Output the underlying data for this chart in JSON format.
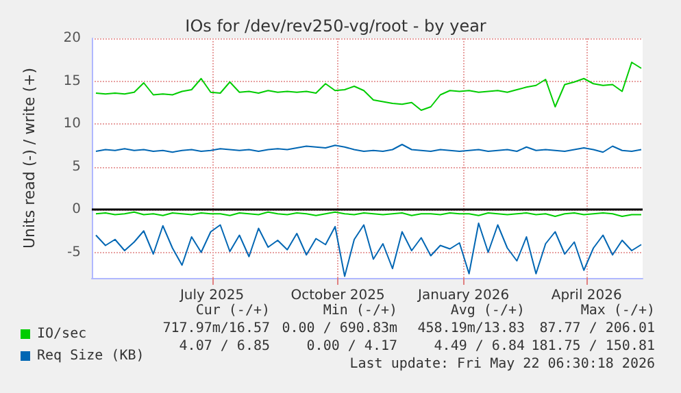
{
  "chart_data": {
    "type": "line",
    "title": "IOs for /dev/rev250-vg/root - by year",
    "ylabel": "Units read (-) / write (+)",
    "x": [
      "2025-04-07",
      "2025-04-14",
      "2025-04-21",
      "2025-04-28",
      "2025-05-05",
      "2025-05-12",
      "2025-05-19",
      "2025-05-26",
      "2025-06-02",
      "2025-06-09",
      "2025-06-16",
      "2025-06-23",
      "2025-06-30",
      "2025-07-07",
      "2025-07-14",
      "2025-07-21",
      "2025-07-28",
      "2025-08-04",
      "2025-08-11",
      "2025-08-18",
      "2025-08-25",
      "2025-09-01",
      "2025-09-08",
      "2025-09-15",
      "2025-09-22",
      "2025-09-29",
      "2025-10-06",
      "2025-10-13",
      "2025-10-20",
      "2025-10-27",
      "2025-11-03",
      "2025-11-10",
      "2025-11-17",
      "2025-11-24",
      "2025-12-01",
      "2025-12-08",
      "2025-12-15",
      "2025-12-22",
      "2025-12-29",
      "2026-01-05",
      "2026-01-12",
      "2026-01-19",
      "2026-01-26",
      "2026-02-02",
      "2026-02-09",
      "2026-02-16",
      "2026-02-23",
      "2026-03-02",
      "2026-03-09",
      "2026-03-16",
      "2026-03-23",
      "2026-03-30",
      "2026-04-06",
      "2026-04-13",
      "2026-04-20",
      "2026-04-27",
      "2026-05-04",
      "2026-05-11"
    ],
    "series": [
      {
        "name": "IO/sec",
        "color": "#00cc00",
        "values": [
          13.6,
          13.5,
          13.6,
          13.5,
          13.7,
          14.8,
          13.4,
          13.5,
          13.4,
          13.8,
          14.0,
          15.3,
          13.7,
          13.6,
          14.9,
          13.7,
          13.8,
          13.6,
          13.9,
          13.7,
          13.8,
          13.7,
          13.8,
          13.6,
          14.7,
          13.9,
          14.0,
          14.4,
          13.9,
          12.8,
          12.6,
          12.4,
          12.3,
          12.5,
          11.6,
          12.0,
          13.4,
          13.9,
          13.8,
          13.9,
          13.7,
          13.8,
          13.9,
          13.7,
          14.0,
          14.3,
          14.5,
          15.2,
          12.0,
          14.6,
          14.9,
          15.3,
          14.7,
          14.5,
          14.6,
          13.8,
          17.2,
          16.5
        ]
      },
      {
        "color": "#00cc00",
        "values": [
          -0.5,
          -0.4,
          -0.6,
          -0.5,
          -0.3,
          -0.6,
          -0.5,
          -0.7,
          -0.4,
          -0.5,
          -0.6,
          -0.4,
          -0.5,
          -0.5,
          -0.7,
          -0.4,
          -0.5,
          -0.6,
          -0.3,
          -0.5,
          -0.6,
          -0.4,
          -0.5,
          -0.7,
          -0.5,
          -0.3,
          -0.5,
          -0.6,
          -0.4,
          -0.5,
          -0.6,
          -0.5,
          -0.4,
          -0.7,
          -0.5,
          -0.5,
          -0.6,
          -0.4,
          -0.5,
          -0.5,
          -0.7,
          -0.4,
          -0.5,
          -0.6,
          -0.5,
          -0.4,
          -0.6,
          -0.5,
          -0.8,
          -0.5,
          -0.4,
          -0.6,
          -0.5,
          -0.4,
          -0.5,
          -0.8,
          -0.6,
          -0.6
        ]
      },
      {
        "name": "Req Size (KB)",
        "color": "#0066b3",
        "values": [
          6.8,
          7.0,
          6.9,
          7.1,
          6.9,
          7.0,
          6.8,
          6.9,
          6.7,
          6.9,
          7.0,
          6.8,
          6.9,
          7.1,
          7.0,
          6.9,
          7.0,
          6.8,
          7.0,
          7.1,
          7.0,
          7.2,
          7.4,
          7.3,
          7.2,
          7.5,
          7.3,
          7.0,
          6.8,
          6.9,
          6.8,
          7.0,
          7.6,
          7.0,
          6.9,
          6.8,
          7.0,
          6.9,
          6.8,
          6.9,
          7.0,
          6.8,
          6.9,
          7.0,
          6.8,
          7.3,
          6.9,
          7.0,
          6.9,
          6.8,
          7.0,
          7.2,
          7.0,
          6.7,
          7.4,
          6.9,
          6.8,
          7.0
        ]
      },
      {
        "color": "#0066b3",
        "values": [
          -3.0,
          -4.2,
          -3.5,
          -4.8,
          -3.8,
          -2.5,
          -5.2,
          -1.9,
          -4.5,
          -6.5,
          -3.2,
          -5.0,
          -2.6,
          -1.8,
          -4.9,
          -3.0,
          -5.5,
          -2.2,
          -4.4,
          -3.6,
          -4.7,
          -2.8,
          -5.3,
          -3.4,
          -4.1,
          -2.0,
          -7.8,
          -3.5,
          -1.8,
          -5.8,
          -4.0,
          -6.9,
          -2.6,
          -4.8,
          -3.3,
          -5.4,
          -4.2,
          -4.6,
          -3.9,
          -7.5,
          -1.6,
          -5.0,
          -1.8,
          -4.5,
          -6.0,
          -3.2,
          -7.5,
          -4.0,
          -2.6,
          -5.2,
          -3.8,
          -7.1,
          -4.5,
          -3.0,
          -5.3,
          -3.6,
          -4.8,
          -4.1
        ]
      }
    ],
    "ref_lines": [
      {
        "axis": "y",
        "value": 0,
        "color": "#000000"
      }
    ],
    "xlim": [
      "2025-04-04",
      "2026-05-12"
    ],
    "xticks": [
      {
        "value": "2025-07-01",
        "label": "July 2025"
      },
      {
        "value": "2025-10-01",
        "label": "October 2025"
      },
      {
        "value": "2026-01-01",
        "label": "January 2026"
      },
      {
        "value": "2026-04-01",
        "label": "April 2026"
      }
    ],
    "ylim": [
      -8,
      20
    ],
    "yticks": [
      -5,
      0,
      5,
      10,
      15,
      20
    ],
    "grid": true,
    "legend": "bottom left",
    "marker": "none",
    "line_style": "solid",
    "annotations": [
      "Cur (-/+)",
      "Min (-/+)",
      "Avg (-/+)",
      "Max (-/+)",
      "717.97m/16.57",
      "0.00 / 690.83m",
      "458.19m/13.83",
      "87.77 / 206.01",
      "4.07 / 6.85",
      "0.00 / 4.17",
      "4.49 / 6.84",
      "181.75 / 150.81",
      "Last update: Fri May 22 06:30:18 2026"
    ]
  }
}
